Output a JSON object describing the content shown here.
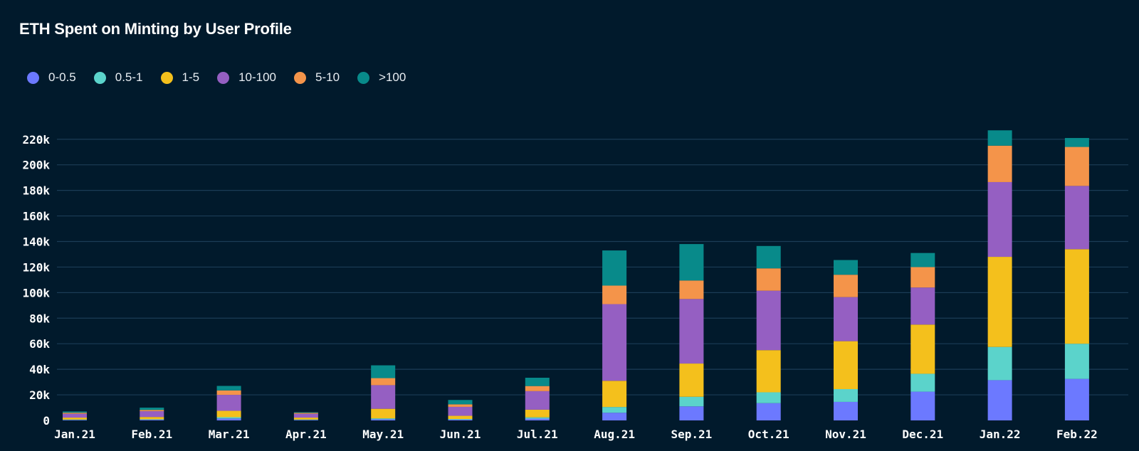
{
  "chart_data": {
    "type": "bar",
    "stacked": true,
    "title": "ETH Spent on Minting by User Profile",
    "categories": [
      "Jan.21",
      "Feb.21",
      "Mar.21",
      "Apr.21",
      "May.21",
      "Jun.21",
      "Jul.21",
      "Aug.21",
      "Sep.21",
      "Oct.21",
      "Nov.21",
      "Dec.21",
      "Jan.22",
      "Feb.22"
    ],
    "y_ticks": [
      "0",
      "20k",
      "40k",
      "60k",
      "80k",
      "100k",
      "120k",
      "140k",
      "160k",
      "180k",
      "200k",
      "220k"
    ],
    "ylim": [
      0,
      226000
    ],
    "grid": true,
    "legend_position": "top-left",
    "series": [
      {
        "name": "0-0.5",
        "color": "#6c79ff",
        "values": [
          400,
          500,
          1500,
          400,
          900,
          600,
          1400,
          6000,
          11000,
          13500,
          14500,
          22500,
          31500,
          32500
        ]
      },
      {
        "name": "0.5-1",
        "color": "#5bd3cb",
        "values": [
          300,
          400,
          1000,
          300,
          700,
          500,
          1000,
          4500,
          7500,
          8500,
          10000,
          14000,
          26000,
          27500
        ]
      },
      {
        "name": "1-5",
        "color": "#f4c01c",
        "values": [
          1500,
          1800,
          5000,
          1500,
          7500,
          2500,
          6000,
          20500,
          26000,
          33000,
          37500,
          38500,
          70500,
          74000
        ]
      },
      {
        "name": "10-100",
        "color": "#955fc2",
        "values": [
          3000,
          4500,
          12500,
          3000,
          18500,
          7000,
          14500,
          60000,
          50500,
          46500,
          34500,
          29000,
          58500,
          49500
        ]
      },
      {
        "name": "5-10",
        "color": "#f4944a",
        "values": [
          800,
          1000,
          3500,
          700,
          5500,
          2000,
          4000,
          14500,
          14500,
          17500,
          17500,
          16000,
          28500,
          30500
        ]
      },
      {
        "name": ">100",
        "color": "#088a8a",
        "values": [
          1000,
          1800,
          3500,
          500,
          10000,
          3400,
          6500,
          27500,
          28500,
          17500,
          11500,
          11000,
          12000,
          7000
        ]
      }
    ]
  }
}
